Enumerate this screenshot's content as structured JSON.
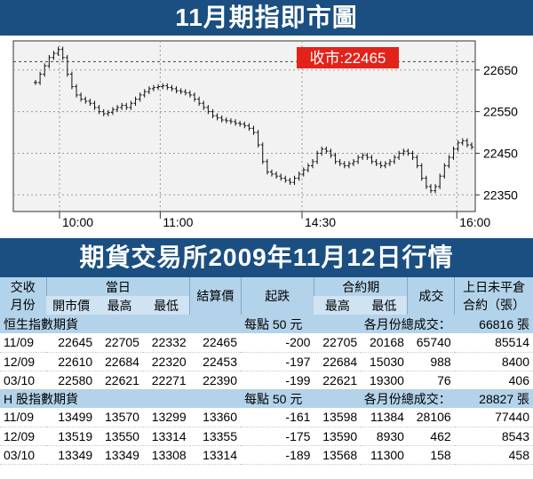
{
  "header": {
    "title": "11月期指即市圖"
  },
  "chart_data": {
    "type": "candlestick",
    "title": "11月期指即市圖",
    "ylim": [
      22310,
      22720
    ],
    "yticks": [
      22650,
      22550,
      22450,
      22350
    ],
    "xticks": [
      "10:00",
      "11:00",
      "14:30",
      "16:00"
    ],
    "close_label": "收市:22465",
    "close_value": 22465,
    "reference_value": 22670,
    "series": [
      22620,
      22640,
      22660,
      22680,
      22690,
      22700,
      22680,
      22640,
      22610,
      22590,
      22580,
      22575,
      22570,
      22560,
      22550,
      22545,
      22548,
      22555,
      22560,
      22565,
      22560,
      22570,
      22580,
      22590,
      22598,
      22605,
      22608,
      22610,
      22612,
      22608,
      22605,
      22600,
      22598,
      22595,
      22590,
      22580,
      22570,
      22560,
      22550,
      22540,
      22535,
      22530,
      22528,
      22526,
      22522,
      22520,
      22516,
      22510,
      22500,
      22470,
      22430,
      22405,
      22400,
      22395,
      22390,
      22385,
      22380,
      22390,
      22400,
      22410,
      22420,
      22430,
      22450,
      22460,
      22455,
      22445,
      22430,
      22425,
      22420,
      22425,
      22430,
      22440,
      22445,
      22440,
      22430,
      22425,
      22420,
      22425,
      22430,
      22440,
      22450,
      22455,
      22450,
      22440,
      22420,
      22390,
      22370,
      22360,
      22370,
      22395,
      22420,
      22440,
      22460,
      22475,
      22480,
      22470,
      22465
    ]
  },
  "table": {
    "headers": {
      "col1a": "交收",
      "col1b": "月份",
      "dangri": "當日",
      "jiesuan": "結算價",
      "qidie": "起跌",
      "heyueqi": "合約期",
      "chengjiao": "成交",
      "weiping_a": "上日未平倉",
      "weiping_b": "合約（張）",
      "kaishi": "開市價",
      "zuigao": "最高",
      "zuidi": "最低",
      "hy_zuigao": "最高",
      "hy_zuidi": "最低"
    },
    "sections": [
      {
        "name": "恒生指數期貨",
        "per_point": "每點 50 元",
        "total_label": "各月份總成交：",
        "total_value": "66816 張",
        "rows": [
          [
            "11/09",
            "22645",
            "22705",
            "22332",
            "22465",
            "-200",
            "22705",
            "20168",
            "65740",
            "85514"
          ],
          [
            "12/09",
            "22610",
            "22684",
            "22320",
            "22453",
            "-197",
            "22684",
            "15030",
            "988",
            "8400"
          ],
          [
            "03/10",
            "22580",
            "22621",
            "22271",
            "22390",
            "-199",
            "22621",
            "19300",
            "76",
            "406"
          ]
        ]
      },
      {
        "name": "H 股指數期貨",
        "per_point": "每點 50 元",
        "total_label": "各月份總成交：",
        "total_value": "28827 張",
        "rows": [
          [
            "11/09",
            "13499",
            "13570",
            "13299",
            "13360",
            "-161",
            "13598",
            "11384",
            "28106",
            "77440"
          ],
          [
            "12/09",
            "13519",
            "13550",
            "13314",
            "13355",
            "-175",
            "13590",
            "8930",
            "462",
            "8543"
          ],
          [
            "03/10",
            "13349",
            "13349",
            "13308",
            "13314",
            "-189",
            "13568",
            "11300",
            "158",
            "458"
          ]
        ]
      }
    ]
  },
  "footer": {
    "title": "期貨交易所2009年11月12日行情"
  },
  "colors": {
    "navy": "#1b4f82",
    "header_blue": "#b3d3ea",
    "close_red": "#e2231a",
    "plot_bg": "#f2f2f2"
  }
}
